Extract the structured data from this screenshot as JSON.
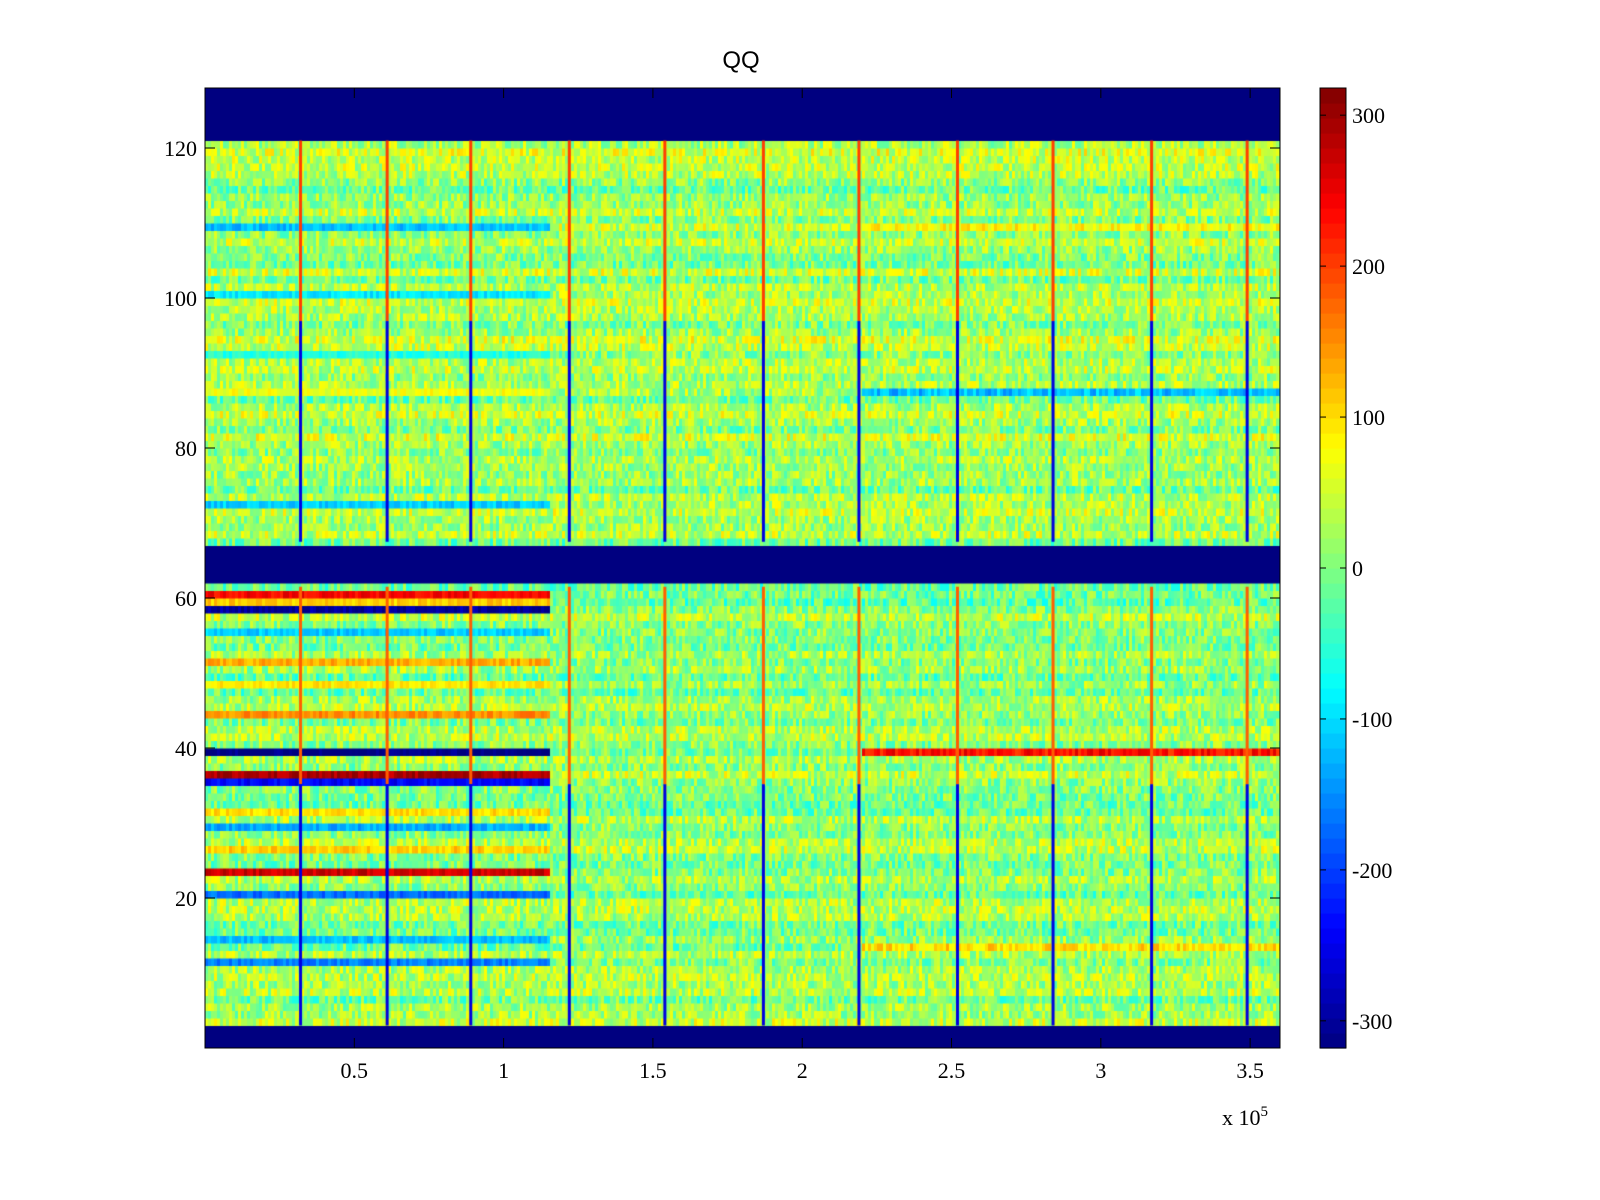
{
  "chart_data": {
    "type": "heatmap",
    "title": "QQ",
    "xlabel": "",
    "ylabel": "",
    "x_multiplier_label": "x 10",
    "x_multiplier_exponent": "5",
    "xlim": [
      0,
      3.6
    ],
    "ylim": [
      0,
      128
    ],
    "x_ticks": [
      {
        "value": 0.5,
        "label": "0.5"
      },
      {
        "value": 1,
        "label": "1"
      },
      {
        "value": 1.5,
        "label": "1.5"
      },
      {
        "value": 2,
        "label": "2"
      },
      {
        "value": 2.5,
        "label": "2.5"
      },
      {
        "value": 3,
        "label": "3"
      },
      {
        "value": 3.5,
        "label": "3.5"
      }
    ],
    "y_ticks": [
      {
        "value": 20,
        "label": "20"
      },
      {
        "value": 40,
        "label": "40"
      },
      {
        "value": 60,
        "label": "60"
      },
      {
        "value": 80,
        "label": "80"
      },
      {
        "value": 100,
        "label": "100"
      },
      {
        "value": 120,
        "label": "120"
      }
    ],
    "colorbar": {
      "colormap": "jet",
      "clim": [
        -318,
        318
      ],
      "ticks": [
        {
          "value": 300,
          "label": "300"
        },
        {
          "value": 200,
          "label": "200"
        },
        {
          "value": 100,
          "label": "100"
        },
        {
          "value": 0,
          "label": "0"
        },
        {
          "value": -100,
          "label": "-100"
        },
        {
          "value": -200,
          "label": "-200"
        },
        {
          "value": -300,
          "label": "-300"
        }
      ]
    },
    "masked_row_ranges": [
      [
        0,
        3
      ],
      [
        61.5,
        67.5
      ],
      [
        121,
        128
      ]
    ],
    "upper_block": {
      "row_range": [
        67.5,
        121
      ],
      "base_value": 20
    },
    "lower_block": {
      "row_range": [
        3,
        61.5
      ],
      "base_value": 10
    },
    "stripe_transition_x": 1.16,
    "vertical_event_lines_x": [
      0.32,
      0.61,
      0.89,
      1.22,
      1.54,
      1.87,
      2.19,
      2.52,
      2.84,
      3.17,
      3.49
    ],
    "row_bands_left": [
      {
        "row": 60,
        "value": 240
      },
      {
        "row": 59,
        "value": 110
      },
      {
        "row": 58,
        "value": -300
      },
      {
        "row": 55,
        "value": -110
      },
      {
        "row": 51,
        "value": 130
      },
      {
        "row": 48,
        "value": 90
      },
      {
        "row": 44,
        "value": 150
      },
      {
        "row": 39,
        "value": -318
      },
      {
        "row": 36,
        "value": 290
      },
      {
        "row": 35,
        "value": -240
      },
      {
        "row": 31,
        "value": 100
      },
      {
        "row": 29,
        "value": -130
      },
      {
        "row": 26,
        "value": 110
      },
      {
        "row": 23,
        "value": 270
      },
      {
        "row": 20,
        "value": -170
      },
      {
        "row": 14,
        "value": -120
      },
      {
        "row": 11,
        "value": -160
      },
      {
        "row": 72,
        "value": -110
      },
      {
        "row": 87,
        "value": 70
      },
      {
        "row": 92,
        "value": -60
      },
      {
        "row": 100,
        "value": -90
      },
      {
        "row": 109,
        "value": -120
      }
    ],
    "row_bands_right": [
      {
        "row": 39,
        "value": 230,
        "x_start": 2.2
      },
      {
        "row": 87,
        "value": -120,
        "x_start": 2.2
      },
      {
        "row": 13,
        "value": 100,
        "x_start": 2.2
      },
      {
        "row": 109,
        "value": 80,
        "x_start": 2.2
      }
    ]
  }
}
